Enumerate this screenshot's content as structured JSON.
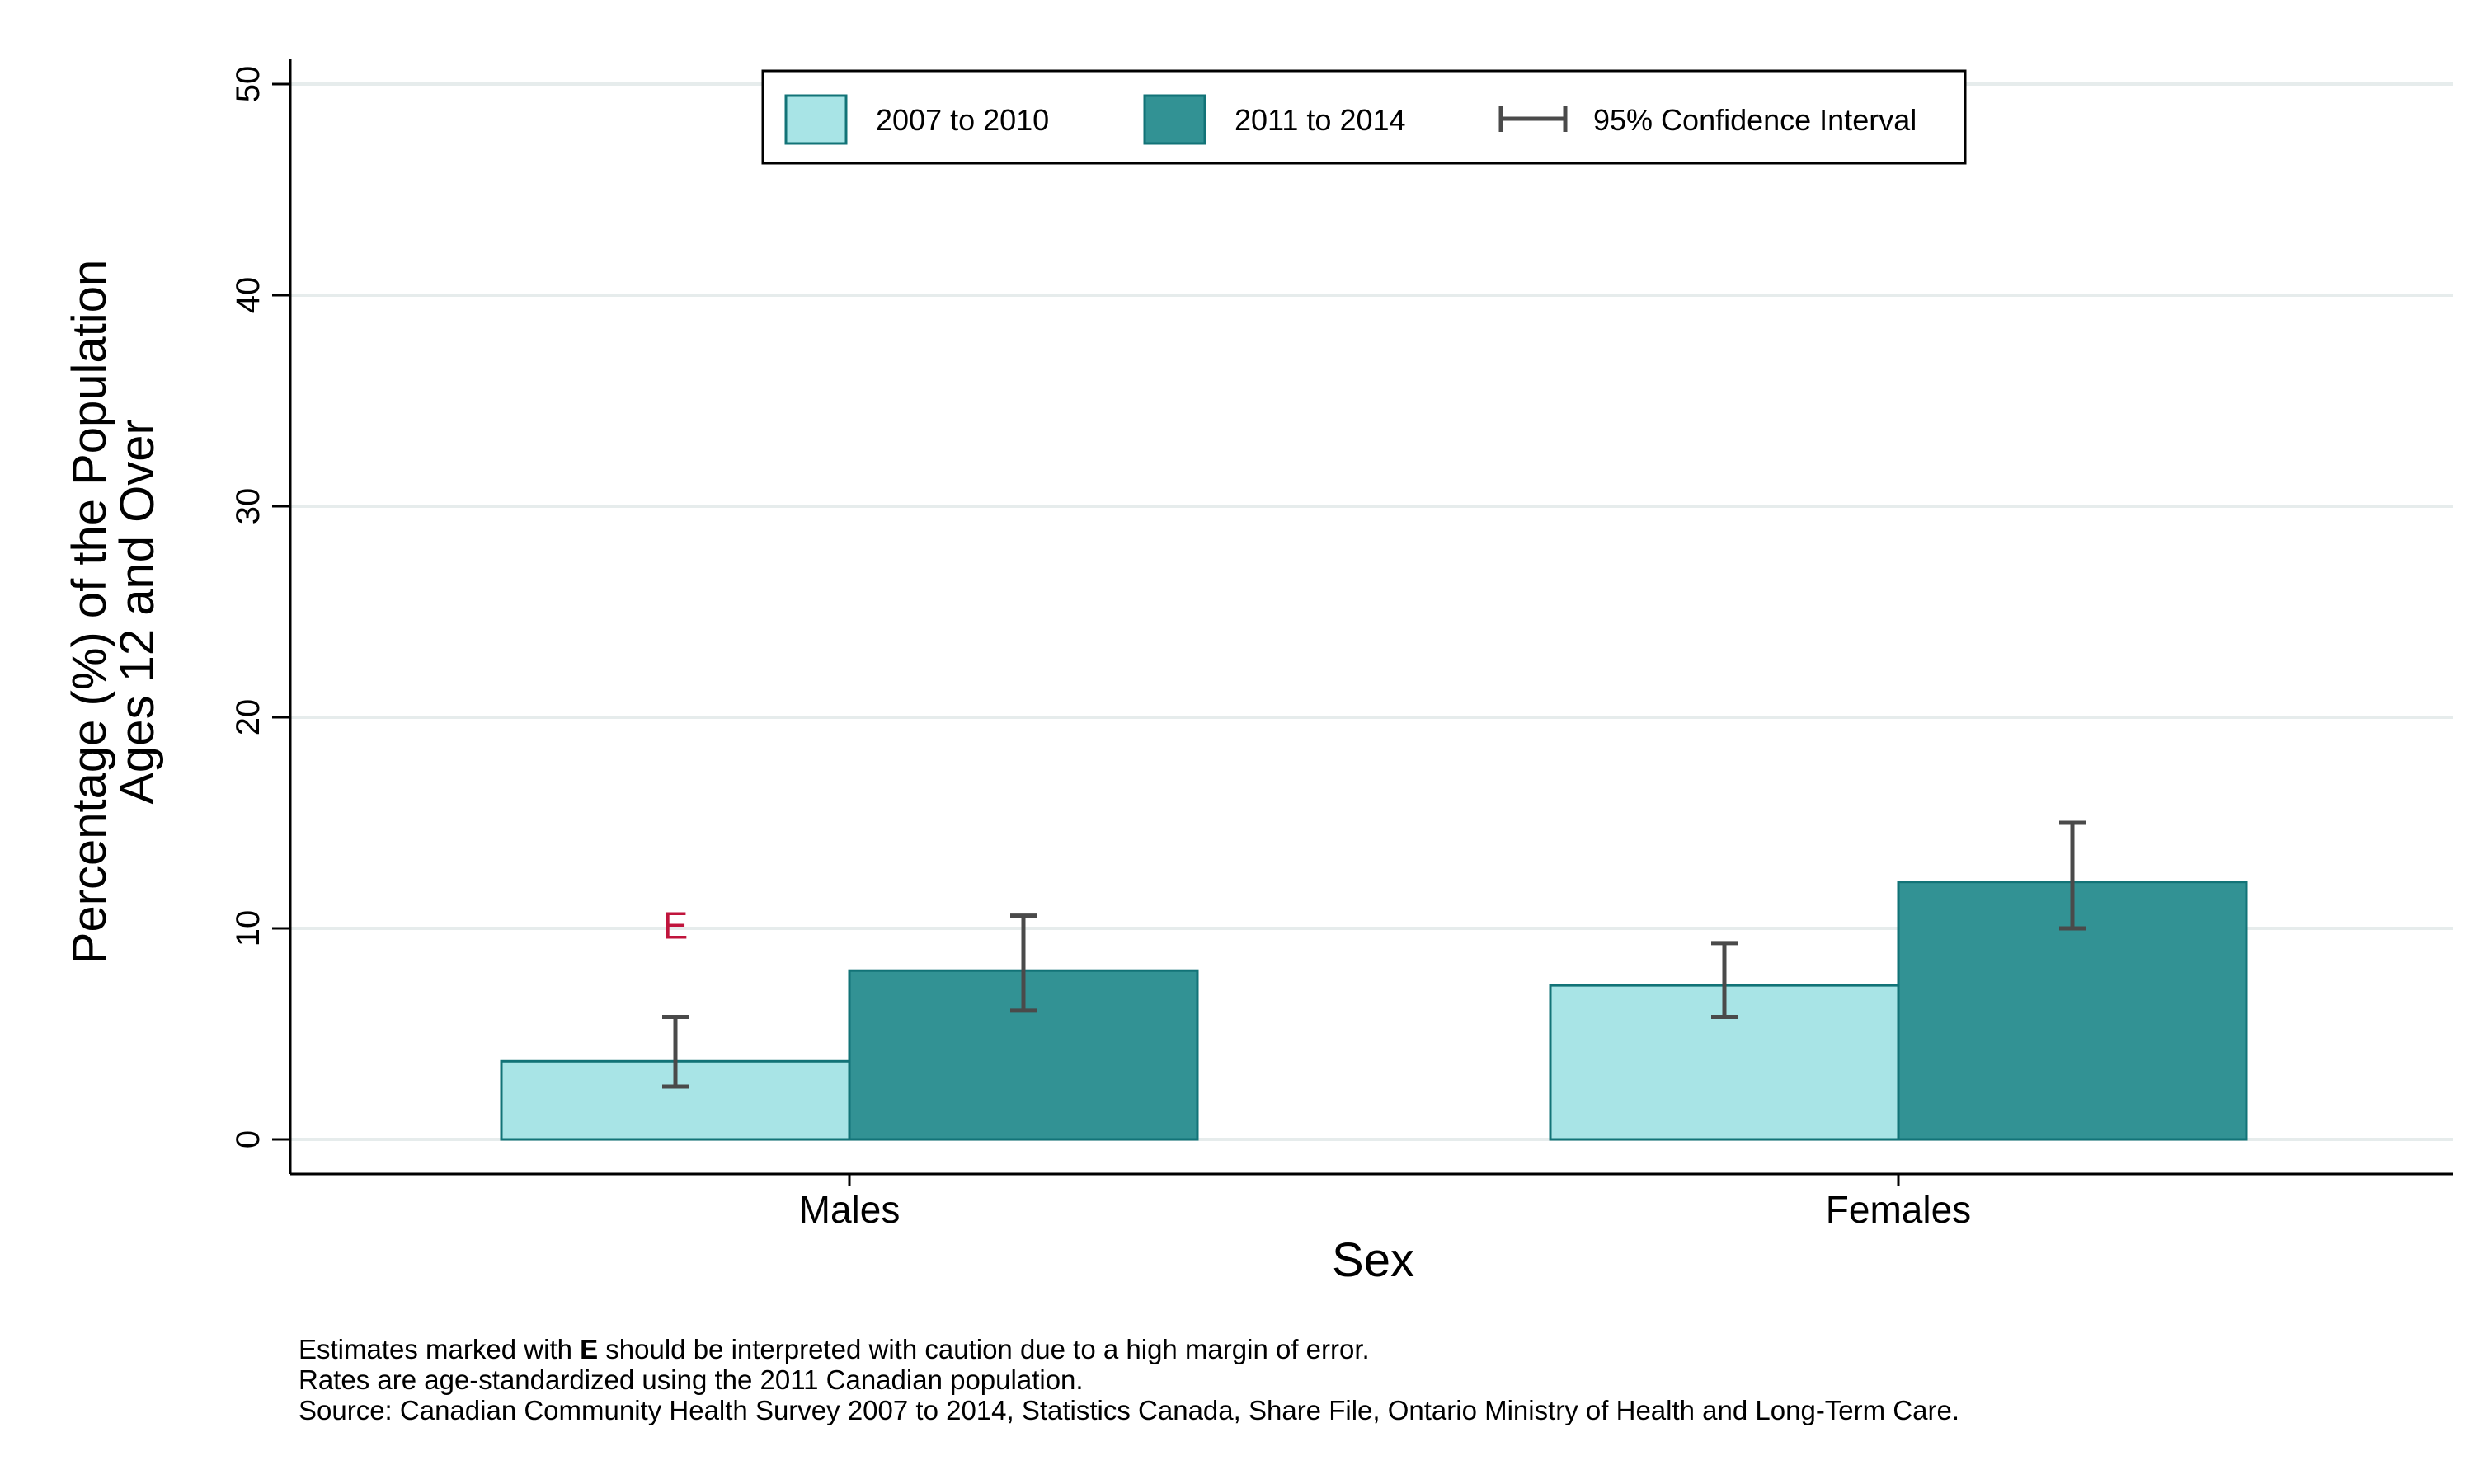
{
  "chart_data": {
    "type": "bar",
    "xlabel": "Sex",
    "ylabel_lines": [
      "Percentage (%) of the Population",
      "Ages 12 and Over"
    ],
    "ylim": [
      0,
      50
    ],
    "yticks": [
      0,
      10,
      20,
      30,
      40,
      50
    ],
    "grid": true,
    "legend_placement": "top-center",
    "categories": [
      "Males",
      "Females"
    ],
    "series": [
      {
        "name": "2007 to 2010",
        "color": "#a8e4e6",
        "values": [
          3.7,
          7.3
        ],
        "ci_low": [
          2.5,
          5.8
        ],
        "ci_high": [
          5.8,
          9.3
        ],
        "flags": [
          "E",
          ""
        ]
      },
      {
        "name": "2011 to 2014",
        "color": "#329294",
        "values": [
          8.0,
          12.2
        ],
        "ci_low": [
          6.1,
          10.0
        ],
        "ci_high": [
          10.6,
          15.0
        ],
        "flags": [
          "",
          ""
        ]
      }
    ],
    "ci_legend_label": "95% Confidence Interval",
    "flag_color": "#c0143c"
  },
  "footnotes": {
    "line1_prefix": "Estimates marked with ",
    "line1_bold": "E",
    "line1_suffix": " should be interpreted with caution due to a high margin of error.",
    "line2": "Rates are age-standardized using the 2011 Canadian population.",
    "line3": "Source: Canadian Community Health Survey 2007 to 2014, Statistics Canada, Share File, Ontario Ministry of Health and Long-Term Care."
  }
}
